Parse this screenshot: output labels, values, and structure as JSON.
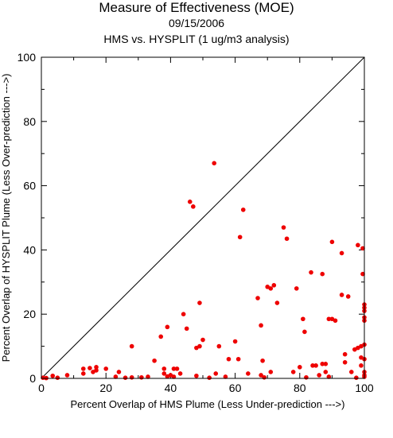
{
  "chart_data": {
    "type": "scatter",
    "title": "Measure of Effectiveness (MOE)",
    "subtitle": "09/15/2006",
    "subtitle2": "HMS vs. HYSPLIT  (1 ug/m3 analysis)",
    "xlabel": "Percent Overlap of HMS Plume (Less Under-prediction --->)",
    "ylabel": "Percent Overlap of HYSPLIT Plume (Less Over-prediction --->)",
    "xlim": [
      0,
      100
    ],
    "ylim": [
      0,
      100
    ],
    "xticks": [
      "0",
      "20",
      "40",
      "60",
      "80",
      "100"
    ],
    "yticks": [
      "0",
      "20",
      "40",
      "60",
      "80",
      "100"
    ],
    "grid": false,
    "reference_line": "y = x",
    "point_color": "#ee0000",
    "points": [
      [
        0.5,
        0.2
      ],
      [
        1.5,
        0.1
      ],
      [
        3.5,
        0.8
      ],
      [
        5,
        0.2
      ],
      [
        8,
        1
      ],
      [
        13,
        3
      ],
      [
        13,
        1.5
      ],
      [
        15,
        3.2
      ],
      [
        16,
        2
      ],
      [
        17,
        3.5
      ],
      [
        17,
        2.5
      ],
      [
        20,
        3
      ],
      [
        23,
        0.5
      ],
      [
        24,
        2
      ],
      [
        26,
        0.2
      ],
      [
        28,
        10
      ],
      [
        28,
        0.3
      ],
      [
        31,
        0.3
      ],
      [
        33,
        0.5
      ],
      [
        35,
        5.5
      ],
      [
        37,
        13
      ],
      [
        38,
        3
      ],
      [
        38,
        1.5
      ],
      [
        39,
        16
      ],
      [
        39,
        0.6
      ],
      [
        40,
        1
      ],
      [
        41,
        0.5
      ],
      [
        41,
        3
      ],
      [
        42,
        3
      ],
      [
        43,
        1.5
      ],
      [
        44,
        20
      ],
      [
        45,
        15.5
      ],
      [
        46,
        55
      ],
      [
        47,
        53.5
      ],
      [
        48,
        0.8
      ],
      [
        48,
        9.5
      ],
      [
        49,
        10
      ],
      [
        49,
        23.5
      ],
      [
        50,
        12
      ],
      [
        52,
        0.2
      ],
      [
        53.5,
        67
      ],
      [
        54,
        1.5
      ],
      [
        55,
        10
      ],
      [
        57,
        0.5
      ],
      [
        58,
        6
      ],
      [
        60,
        11.5
      ],
      [
        61.5,
        44
      ],
      [
        62.5,
        52.5
      ],
      [
        61,
        6
      ],
      [
        64,
        1.5
      ],
      [
        67,
        25
      ],
      [
        68,
        16.5
      ],
      [
        68.5,
        5.5
      ],
      [
        68,
        1
      ],
      [
        69,
        0.3
      ],
      [
        70,
        28.5
      ],
      [
        71,
        28
      ],
      [
        71,
        2
      ],
      [
        72,
        29
      ],
      [
        73,
        23.5
      ],
      [
        75,
        47
      ],
      [
        76,
        43.5
      ],
      [
        78,
        2
      ],
      [
        79,
        28
      ],
      [
        80,
        3.5
      ],
      [
        81,
        18.5
      ],
      [
        81.5,
        14.5
      ],
      [
        82,
        0.3
      ],
      [
        83.5,
        33
      ],
      [
        84,
        4
      ],
      [
        85,
        4
      ],
      [
        86,
        1
      ],
      [
        87,
        32.5
      ],
      [
        87,
        4.5
      ],
      [
        88,
        4.5
      ],
      [
        88,
        2
      ],
      [
        89,
        0.5
      ],
      [
        89,
        18.5
      ],
      [
        90,
        42.5
      ],
      [
        90,
        18.5
      ],
      [
        91,
        18
      ],
      [
        93,
        39
      ],
      [
        93,
        26
      ],
      [
        94,
        5
      ],
      [
        94,
        7.5
      ],
      [
        95,
        25.5
      ],
      [
        96,
        2
      ],
      [
        97,
        9
      ],
      [
        98,
        41.5
      ],
      [
        98,
        9.5
      ],
      [
        99,
        10
      ],
      [
        99,
        6.5
      ],
      [
        99,
        4
      ],
      [
        99.5,
        40.5
      ],
      [
        99.5,
        32.5
      ],
      [
        100,
        23
      ],
      [
        100,
        22
      ],
      [
        100,
        21
      ],
      [
        100,
        19
      ],
      [
        100,
        18
      ],
      [
        100,
        10.5
      ],
      [
        100,
        6
      ],
      [
        100,
        2
      ],
      [
        100,
        1
      ],
      [
        100,
        0.5
      ],
      [
        97.5,
        0.2
      ]
    ]
  }
}
